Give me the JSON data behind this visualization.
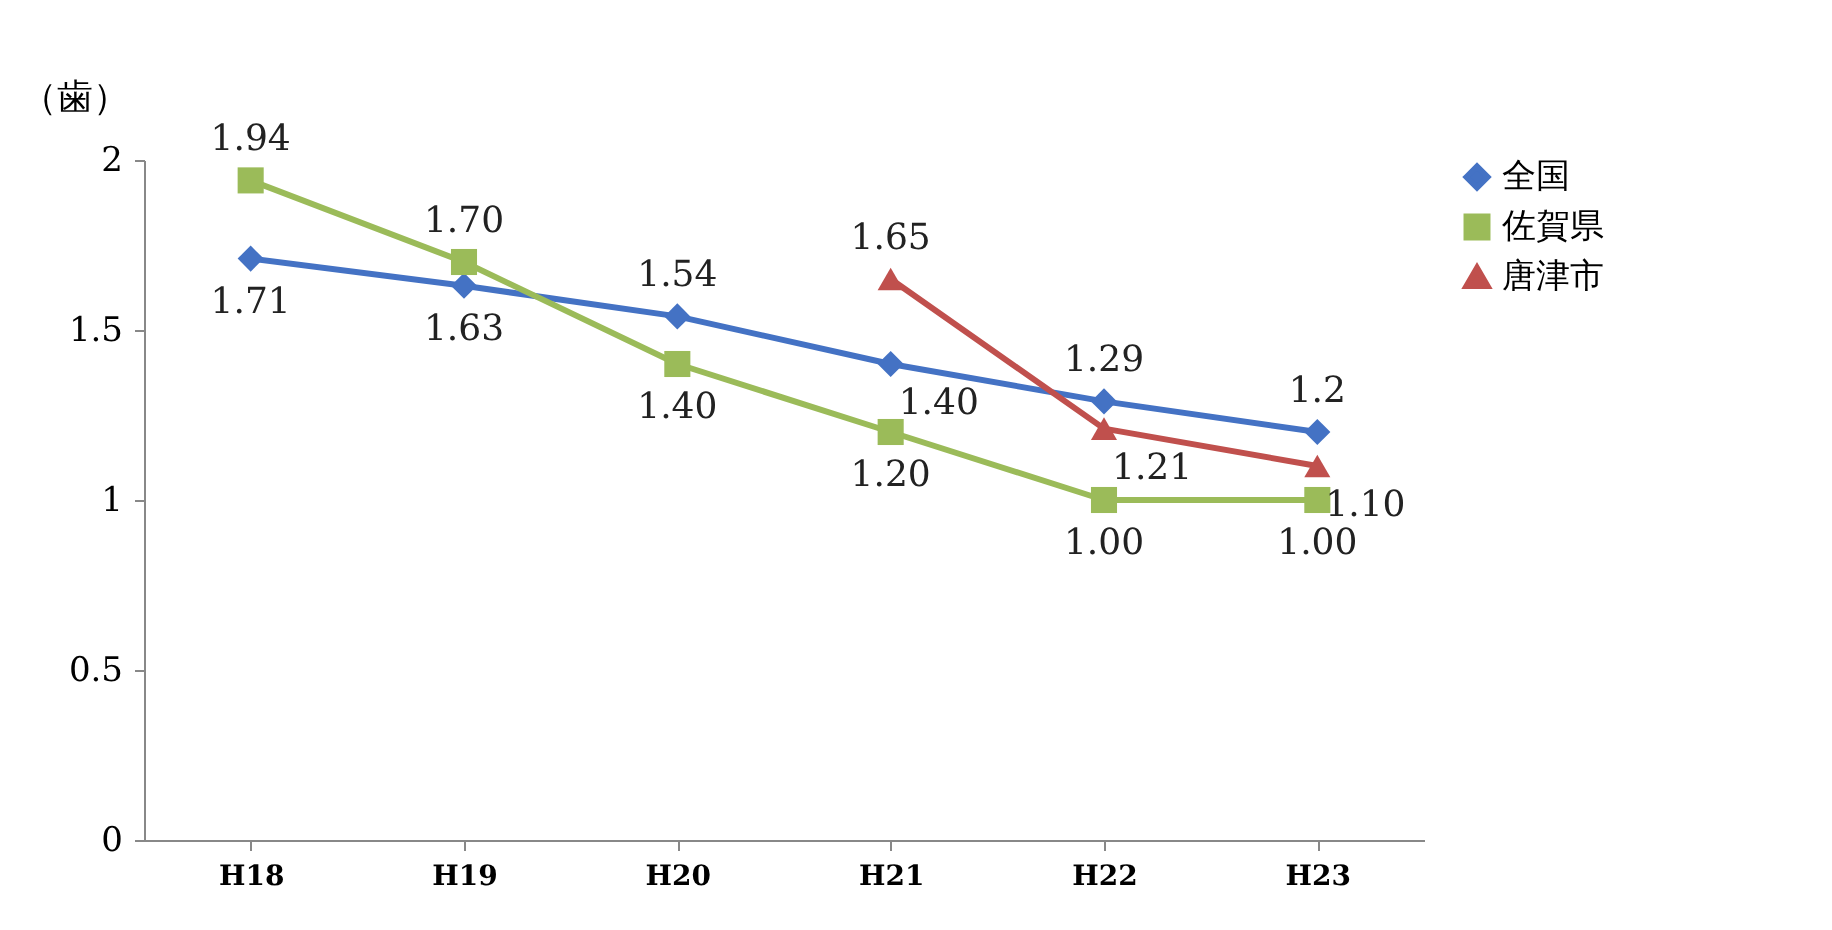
{
  "chart_data": {
    "type": "line",
    "ylabel": "（歯）",
    "categories": [
      "H18",
      "H19",
      "H20",
      "H21",
      "H22",
      "H23"
    ],
    "ylim": [
      0,
      2
    ],
    "yticks": [
      0,
      0.5,
      1,
      1.5,
      2
    ],
    "grid": false,
    "legend": "right",
    "series": [
      {
        "name": "全国",
        "color": "#4472c4",
        "marker": "diamond",
        "values": [
          1.71,
          1.63,
          1.54,
          1.4,
          1.29,
          1.2
        ],
        "value_labels": [
          "1.71",
          "1.63",
          "1.54",
          "1.40",
          "1.29",
          "1.2"
        ]
      },
      {
        "name": "佐賀県",
        "color": "#9bbb59",
        "marker": "square",
        "values": [
          1.94,
          1.7,
          1.4,
          1.2,
          1.0,
          1.0
        ],
        "value_labels": [
          "1.94",
          "1.70",
          "1.40",
          "1.20",
          "1.00",
          "1.00"
        ]
      },
      {
        "name": "唐津市",
        "color": "#c0504d",
        "marker": "triangle",
        "values": [
          null,
          null,
          null,
          1.65,
          1.21,
          1.1
        ],
        "value_labels": [
          null,
          null,
          null,
          "1.65",
          "1.21",
          "1.10"
        ]
      }
    ]
  }
}
